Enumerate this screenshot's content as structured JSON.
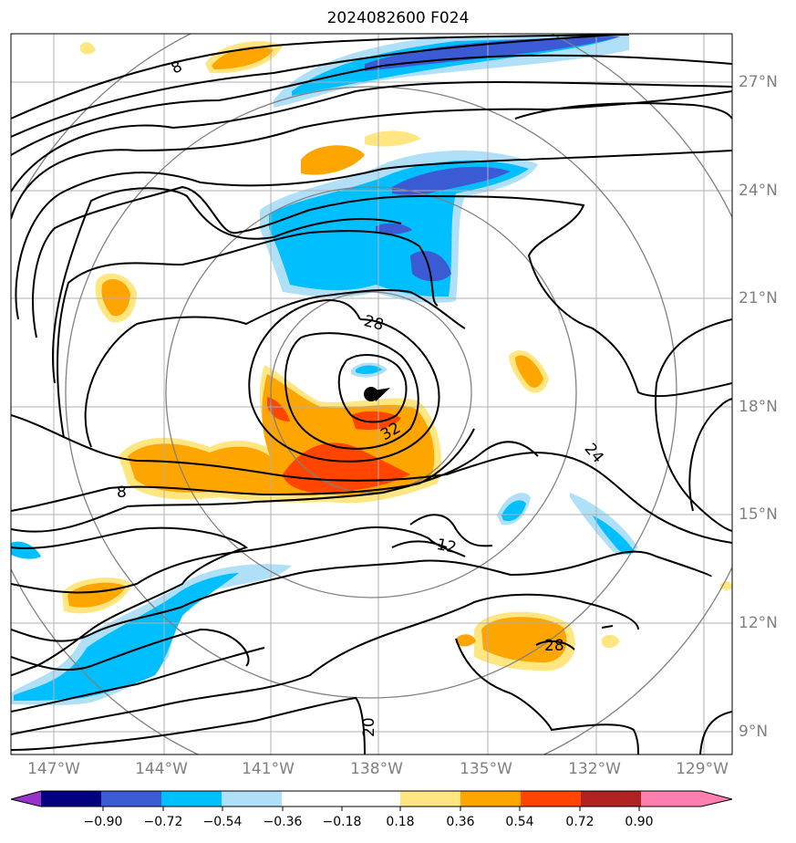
{
  "title": "2024082600 F024",
  "longitude_labels": [
    "147°W",
    "144°W",
    "141°W",
    "138°W",
    "135°W",
    "132°W",
    "129°W"
  ],
  "latitude_labels": [
    "27°N",
    "24°N",
    "21°N",
    "18°N",
    "15°N",
    "12°N",
    "9°N"
  ],
  "contour_labels": [
    "8",
    "8",
    "28",
    "32",
    "24",
    "12",
    "20",
    "28"
  ],
  "colorbar": {
    "labels": [
      "−0.90",
      "−0.72",
      "−0.54",
      "−0.36",
      "−0.18",
      "0.18",
      "0.36",
      "0.54",
      "0.72",
      "0.90"
    ],
    "colors": [
      "#9932cc",
      "#000080",
      "#3b5bd5",
      "#00bfff",
      "#b0e0f8",
      "#ffffff",
      "#ffe680",
      "#ffa500",
      "#ff4500",
      "#b22222",
      "#ff80b0"
    ]
  },
  "colors": {
    "contour": "#000000",
    "grid": "#b0b0b0",
    "range_rings": "#808080",
    "storm_center": "#000000"
  },
  "icons": [
    "storm-center-dot"
  ]
}
